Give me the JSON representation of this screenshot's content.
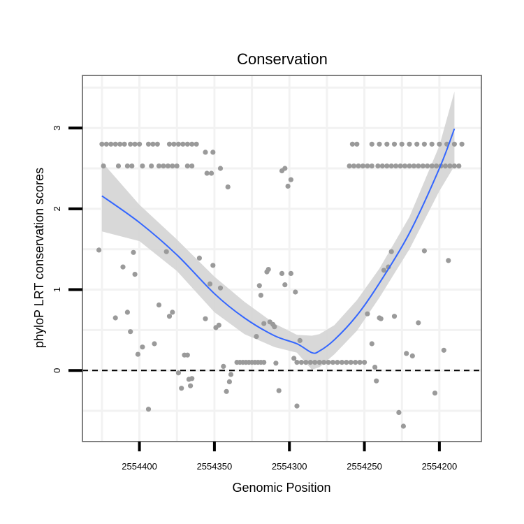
{
  "chart_data": {
    "type": "scatter",
    "title": "Conservation",
    "xlabel": "Genomic Position",
    "ylabel": "phyloP LRT conservation scores",
    "x_reversed": true,
    "xlim": [
      2554438,
      2554172
    ],
    "ylim": [
      -0.88,
      3.65
    ],
    "x_ticks": [
      2554400,
      2554350,
      2554300,
      2554250,
      2554200
    ],
    "x_tick_labels": [
      "2554400",
      "2554350",
      "2554300",
      "2554250",
      "2554200"
    ],
    "y_ticks": [
      0,
      1,
      2,
      3
    ],
    "y_tick_labels": [
      "0",
      "1",
      "2",
      "3"
    ],
    "reference_line": {
      "y": 0,
      "style": "dashed"
    },
    "colors": {
      "points": "#9a9a9a",
      "smooth_line": "#3366ff",
      "ribbon": "#d4d4d4",
      "panel_border": "#808080",
      "grid": "#f2f2f2",
      "ticks": "#000000"
    },
    "series": [
      {
        "name": "scores",
        "points": [
          [
            2554425,
            2.8
          ],
          [
            2554422,
            2.8
          ],
          [
            2554419,
            2.8
          ],
          [
            2554416,
            2.8
          ],
          [
            2554413,
            2.8
          ],
          [
            2554410,
            2.8
          ],
          [
            2554406,
            2.8
          ],
          [
            2554403,
            2.8
          ],
          [
            2554400,
            2.8
          ],
          [
            2554394,
            2.8
          ],
          [
            2554391,
            2.8
          ],
          [
            2554388,
            2.8
          ],
          [
            2554380,
            2.8
          ],
          [
            2554377,
            2.8
          ],
          [
            2554374,
            2.8
          ],
          [
            2554371,
            2.8
          ],
          [
            2554368,
            2.8
          ],
          [
            2554365,
            2.8
          ],
          [
            2554362,
            2.8
          ],
          [
            2554424,
            2.53
          ],
          [
            2554414,
            2.53
          ],
          [
            2554408,
            2.53
          ],
          [
            2554405,
            2.53
          ],
          [
            2554398,
            2.53
          ],
          [
            2554392,
            2.53
          ],
          [
            2554387,
            2.53
          ],
          [
            2554384,
            2.53
          ],
          [
            2554381,
            2.53
          ],
          [
            2554378,
            2.53
          ],
          [
            2554375,
            2.53
          ],
          [
            2554368,
            2.53
          ],
          [
            2554365,
            2.53
          ],
          [
            2554356,
            2.7
          ],
          [
            2554351,
            2.7
          ],
          [
            2554355,
            2.44
          ],
          [
            2554352,
            2.44
          ],
          [
            2554346,
            2.5
          ],
          [
            2554341,
            2.27
          ],
          [
            2554305,
            2.47
          ],
          [
            2554303,
            2.5
          ],
          [
            2554301,
            2.28
          ],
          [
            2554299,
            2.36
          ],
          [
            2554258,
            2.8
          ],
          [
            2554255,
            2.8
          ],
          [
            2554245,
            2.8
          ],
          [
            2554240,
            2.8
          ],
          [
            2554235,
            2.8
          ],
          [
            2554230,
            2.8
          ],
          [
            2554225,
            2.8
          ],
          [
            2554220,
            2.8
          ],
          [
            2554215,
            2.8
          ],
          [
            2554210,
            2.8
          ],
          [
            2554205,
            2.8
          ],
          [
            2554200,
            2.8
          ],
          [
            2554195,
            2.8
          ],
          [
            2554190,
            2.8
          ],
          [
            2554185,
            2.8
          ],
          [
            2554260,
            2.53
          ],
          [
            2554257,
            2.53
          ],
          [
            2554254,
            2.53
          ],
          [
            2554251,
            2.53
          ],
          [
            2554248,
            2.53
          ],
          [
            2554245,
            2.53
          ],
          [
            2554241,
            2.53
          ],
          [
            2554238,
            2.53
          ],
          [
            2554235,
            2.53
          ],
          [
            2554232,
            2.53
          ],
          [
            2554229,
            2.53
          ],
          [
            2554226,
            2.53
          ],
          [
            2554223,
            2.53
          ],
          [
            2554220,
            2.53
          ],
          [
            2554217,
            2.53
          ],
          [
            2554214,
            2.53
          ],
          [
            2554211,
            2.53
          ],
          [
            2554208,
            2.53
          ],
          [
            2554205,
            2.53
          ],
          [
            2554202,
            2.53
          ],
          [
            2554199,
            2.53
          ],
          [
            2554196,
            2.53
          ],
          [
            2554193,
            2.53
          ],
          [
            2554190,
            2.53
          ],
          [
            2554187,
            2.53
          ],
          [
            2554427,
            1.49
          ],
          [
            2554416,
            0.65
          ],
          [
            2554411,
            1.28
          ],
          [
            2554408,
            0.72
          ],
          [
            2554406,
            0.48
          ],
          [
            2554404,
            1.46
          ],
          [
            2554403,
            1.19
          ],
          [
            2554401,
            0.2
          ],
          [
            2554398,
            0.29
          ],
          [
            2554394,
            -0.48
          ],
          [
            2554390,
            0.33
          ],
          [
            2554387,
            0.81
          ],
          [
            2554382,
            1.47
          ],
          [
            2554380,
            0.67
          ],
          [
            2554378,
            0.72
          ],
          [
            2554374,
            -0.03
          ],
          [
            2554372,
            -0.22
          ],
          [
            2554370,
            0.19
          ],
          [
            2554368,
            0.19
          ],
          [
            2554367,
            -0.11
          ],
          [
            2554366,
            -0.19
          ],
          [
            2554365,
            -0.1
          ],
          [
            2554360,
            1.39
          ],
          [
            2554356,
            0.64
          ],
          [
            2554353,
            1.07
          ],
          [
            2554351,
            1.3
          ],
          [
            2554349,
            0.53
          ],
          [
            2554347,
            0.56
          ],
          [
            2554346,
            1.02
          ],
          [
            2554344,
            0.05
          ],
          [
            2554342,
            -0.26
          ],
          [
            2554340,
            -0.14
          ],
          [
            2554339,
            -0.05
          ],
          [
            2554335,
            0.1
          ],
          [
            2554333,
            0.1
          ],
          [
            2554331,
            0.1
          ],
          [
            2554329,
            0.1
          ],
          [
            2554327,
            0.1
          ],
          [
            2554325,
            0.1
          ],
          [
            2554323,
            0.1
          ],
          [
            2554321,
            0.1
          ],
          [
            2554319,
            0.1
          ],
          [
            2554317,
            0.1
          ],
          [
            2554322,
            0.42
          ],
          [
            2554320,
            1.05
          ],
          [
            2554319,
            0.93
          ],
          [
            2554317,
            0.58
          ],
          [
            2554315,
            1.22
          ],
          [
            2554314,
            1.25
          ],
          [
            2554313,
            0.6
          ],
          [
            2554311,
            0.57
          ],
          [
            2554310,
            0.54
          ],
          [
            2554307,
            -0.25
          ],
          [
            2554309,
            0.09
          ],
          [
            2554305,
            1.2
          ],
          [
            2554303,
            1.06
          ],
          [
            2554299,
            1.2
          ],
          [
            2554297,
            0.15
          ],
          [
            2554296,
            0.97
          ],
          [
            2554295,
            -0.44
          ],
          [
            2554293,
            0.37
          ],
          [
            2554295,
            0.1
          ],
          [
            2554292,
            0.1
          ],
          [
            2554289,
            0.1
          ],
          [
            2554286,
            0.1
          ],
          [
            2554283,
            0.1
          ],
          [
            2554280,
            0.1
          ],
          [
            2554277,
            0.1
          ],
          [
            2554274,
            0.1
          ],
          [
            2554271,
            0.1
          ],
          [
            2554268,
            0.1
          ],
          [
            2554265,
            0.1
          ],
          [
            2554262,
            0.1
          ],
          [
            2554259,
            0.1
          ],
          [
            2554256,
            0.1
          ],
          [
            2554253,
            0.1
          ],
          [
            2554250,
            0.1
          ],
          [
            2554248,
            0.7
          ],
          [
            2554245,
            0.33
          ],
          [
            2554243,
            0.04
          ],
          [
            2554242,
            -0.13
          ],
          [
            2554240,
            0.65
          ],
          [
            2554239,
            0.64
          ],
          [
            2554237,
            1.24
          ],
          [
            2554234,
            1.28
          ],
          [
            2554232,
            1.47
          ],
          [
            2554230,
            0.67
          ],
          [
            2554227,
            -0.52
          ],
          [
            2554224,
            -0.69
          ],
          [
            2554222,
            0.21
          ],
          [
            2554218,
            0.18
          ],
          [
            2554214,
            0.59
          ],
          [
            2554210,
            1.48
          ],
          [
            2554203,
            -0.28
          ],
          [
            2554197,
            0.25
          ],
          [
            2554194,
            1.36
          ]
        ]
      }
    ],
    "smooth": {
      "x": [
        2554425,
        2554400,
        2554375,
        2554350,
        2554330,
        2554310,
        2554295,
        2554285,
        2554280,
        2554270,
        2554255,
        2554240,
        2554220,
        2554200,
        2554190
      ],
      "y": [
        2.16,
        1.83,
        1.43,
        0.95,
        0.65,
        0.43,
        0.33,
        0.22,
        0.24,
        0.38,
        0.68,
        1.08,
        1.7,
        2.5,
        2.99
      ],
      "upper": [
        2.58,
        2.05,
        1.62,
        1.16,
        0.85,
        0.58,
        0.44,
        0.43,
        0.45,
        0.56,
        0.87,
        1.26,
        1.9,
        2.78,
        3.45
      ],
      "lower": [
        1.72,
        1.6,
        1.23,
        0.72,
        0.45,
        0.29,
        0.22,
        0.01,
        0.04,
        0.2,
        0.49,
        0.9,
        1.5,
        2.22,
        2.53
      ]
    }
  }
}
